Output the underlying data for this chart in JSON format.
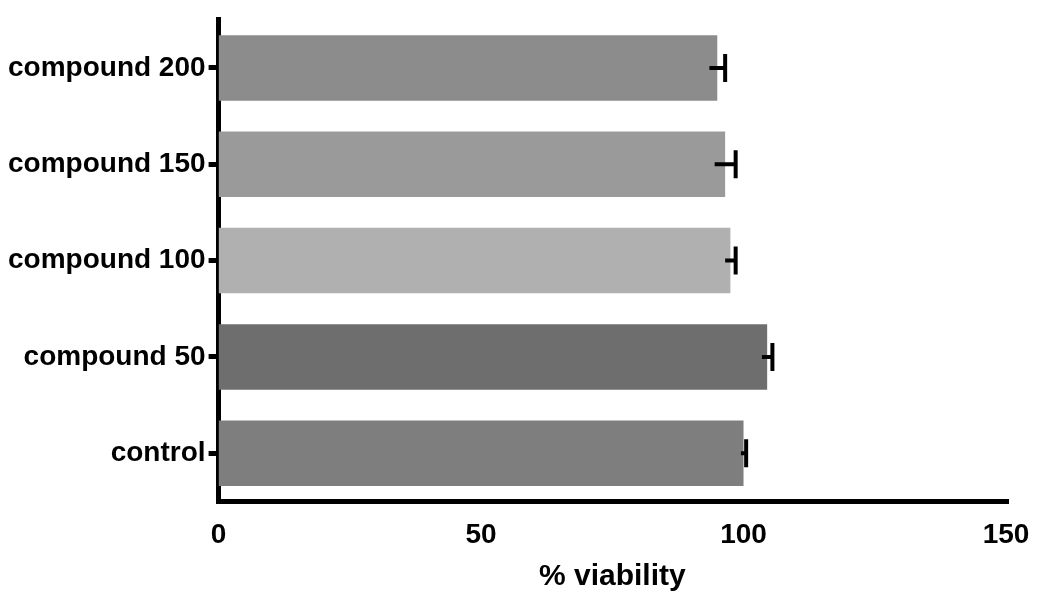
{
  "chart_data": {
    "type": "bar",
    "orientation": "horizontal",
    "xlabel": "% viability",
    "categories": [
      "compound 200",
      "compound 150",
      "compound 100",
      "compound 50",
      "control"
    ],
    "values": [
      95,
      96.5,
      97.5,
      104.5,
      100
    ],
    "errors": [
      1.5,
      2,
      1,
      1,
      0.5
    ],
    "colors": [
      "#8c8c8c",
      "#9a9a9a",
      "#b0b0b0",
      "#6e6e6e",
      "#7e7e7e"
    ],
    "xlim": [
      0,
      150
    ],
    "xticks": [
      0,
      50,
      100,
      150
    ],
    "grid": false,
    "legend": false
  }
}
